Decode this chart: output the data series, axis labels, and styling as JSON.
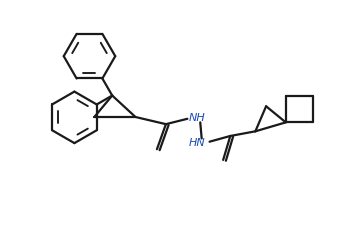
{
  "background_color": "#ffffff",
  "line_color": "#1a1a1a",
  "nh_color": "#1a4db5",
  "line_width": 1.6,
  "figsize": [
    3.64,
    2.34
  ],
  "dpi": 100
}
